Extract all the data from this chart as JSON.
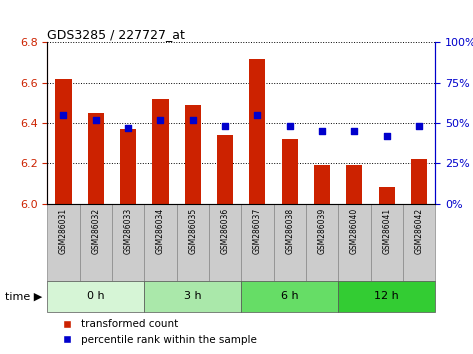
{
  "title": "GDS3285 / 227727_at",
  "samples": [
    "GSM286031",
    "GSM286032",
    "GSM286033",
    "GSM286034",
    "GSM286035",
    "GSM286036",
    "GSM286037",
    "GSM286038",
    "GSM286039",
    "GSM286040",
    "GSM286041",
    "GSM286042"
  ],
  "transformed_count": [
    6.62,
    6.45,
    6.37,
    6.52,
    6.49,
    6.34,
    6.72,
    6.32,
    6.19,
    6.19,
    6.08,
    6.22
  ],
  "percentile_rank": [
    55,
    52,
    47,
    52,
    52,
    48,
    55,
    48,
    45,
    45,
    42,
    48
  ],
  "ylim_left": [
    6.0,
    6.8
  ],
  "ylim_right": [
    0,
    100
  ],
  "yticks_left": [
    6.0,
    6.2,
    6.4,
    6.6,
    6.8
  ],
  "yticks_right": [
    0,
    25,
    50,
    75,
    100
  ],
  "groups": [
    {
      "label": "0 h",
      "start": 0,
      "end": 3,
      "color": "#d6f5d6"
    },
    {
      "label": "3 h",
      "start": 3,
      "end": 6,
      "color": "#aae8aa"
    },
    {
      "label": "6 h",
      "start": 6,
      "end": 9,
      "color": "#66dd66"
    },
    {
      "label": "12 h",
      "start": 9,
      "end": 12,
      "color": "#33cc33"
    }
  ],
  "bar_color": "#cc2200",
  "dot_color": "#0000cc",
  "grid_color": "#000000",
  "bg_color": "#ffffff",
  "tick_color_left": "#cc2200",
  "tick_color_right": "#0000cc",
  "sample_box_color": "#cccccc",
  "legend_items": [
    "transformed count",
    "percentile rank within the sample"
  ],
  "time_label": "time"
}
